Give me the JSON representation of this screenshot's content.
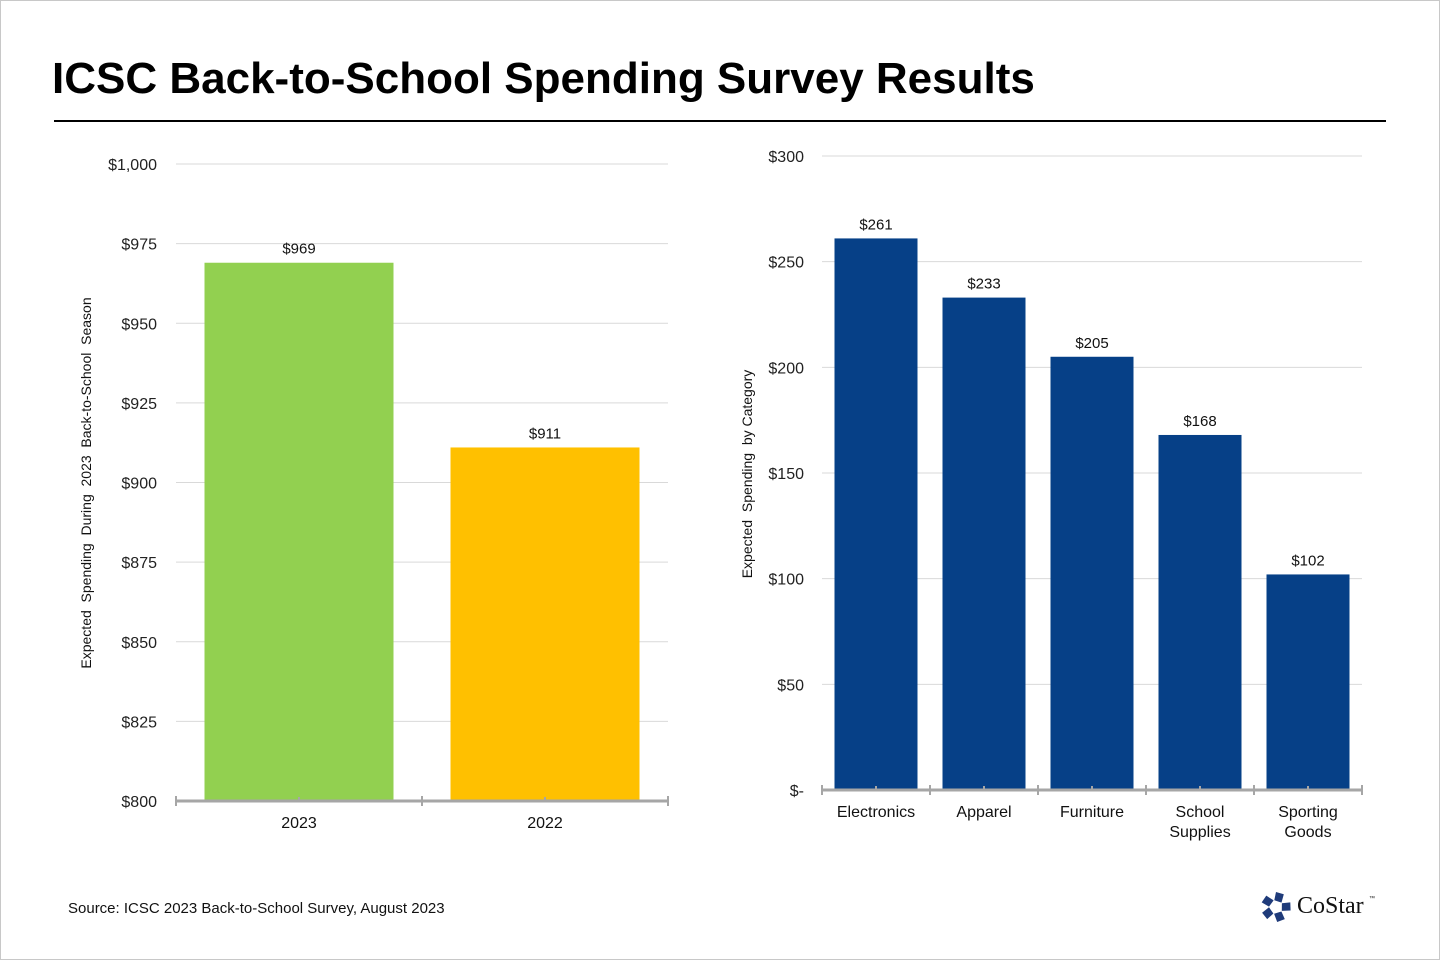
{
  "title": "ICSC Back-to-School Spending Survey Results",
  "source": "Source: ICSC 2023 Back-to-School Survey, August 2023",
  "logo": {
    "text": "CoStar",
    "tm": "™",
    "icon": "costar-star-icon",
    "color": "#1f3b7a"
  },
  "chart_data": [
    {
      "type": "bar",
      "title": "",
      "xlabel": "",
      "ylabel": "Expected  Spending  During  2023  Back-to-School  Season",
      "categories": [
        "2023",
        "2022"
      ],
      "values": [
        969,
        911
      ],
      "data_labels": [
        "$969",
        "$911"
      ],
      "colors": [
        "#92d050",
        "#ffc000"
      ],
      "ylim": [
        800,
        1000
      ],
      "yticks": [
        800,
        825,
        850,
        875,
        900,
        925,
        950,
        975,
        1000
      ],
      "ytick_labels": [
        "$800",
        "$825",
        "$850",
        "$875",
        "$900",
        "$925",
        "$950",
        "$975",
        "$1,000"
      ],
      "grid": true
    },
    {
      "type": "bar",
      "title": "",
      "xlabel": "",
      "ylabel": "Expected  Spending  by Category",
      "categories": [
        "Electronics",
        "Apparel",
        "Furniture",
        "School Supplies",
        "Sporting Goods"
      ],
      "category_lines": [
        [
          "Electronics"
        ],
        [
          "Apparel"
        ],
        [
          "Furniture"
        ],
        [
          "School",
          "Supplies"
        ],
        [
          "Sporting",
          "Goods"
        ]
      ],
      "values": [
        261,
        233,
        205,
        168,
        102
      ],
      "data_labels": [
        "$261",
        "$233",
        "$205",
        "$168",
        "$102"
      ],
      "colors": [
        "#064087"
      ],
      "ylim": [
        0,
        300
      ],
      "yticks": [
        0,
        50,
        100,
        150,
        200,
        250,
        300
      ],
      "ytick_labels": [
        "$-",
        "$50",
        "$100",
        "$150",
        "$200",
        "$250",
        "$300"
      ],
      "grid": true
    }
  ]
}
